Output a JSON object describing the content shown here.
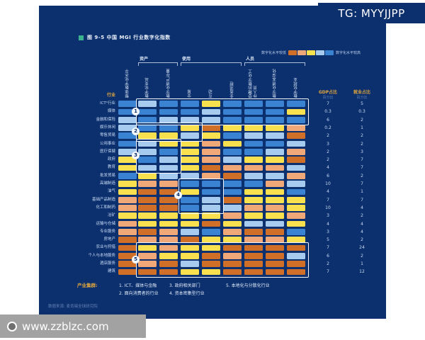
{
  "watermark_tg": "TG: MYYJJPP",
  "watermark_site": "www.zzblzc.com",
  "title": "图 9-5 中国 MGI 行业数字化指数",
  "legend": {
    "low": "数字化水平较低",
    "high": "数字化水平较高"
  },
  "row_header": "行业",
  "gdp_header": "GDP占比",
  "gdp_sub": "百分比",
  "emp_header": "就业占比",
  "emp_sub": "百分比",
  "cluster_label": "产业集群:",
  "cluster_items": [
    "1. ICT、媒体与金融",
    "2. 面向消费者的行业",
    "3. 政府相关部门",
    "4. 资本密集型行业",
    "5. 本地化与分散化行业"
  ],
  "source": "数据来源: 麦肯锡全球研究院",
  "colors": {
    "background": "#0c306e",
    "accent_teal": "#3cb18f",
    "label_orange": "#e6a93c",
    "levels": [
      "#d06f28",
      "#f0a878",
      "#f8e04f",
      "#a6cbee",
      "#3a82d2"
    ]
  },
  "chart_data": {
    "type": "heatmap",
    "title": "图 9-5 中国 MGI 行业数字化指数",
    "legend": {
      "left": "数字化水平较低",
      "right": "数字化水平较高"
    },
    "level_meaning": "1=最低(深橙) 2=较低(浅橙/肉色) 3=中等(黄) 4=较高(浅蓝) 5=最高(蓝)",
    "column_groups": [
      {
        "label": "资产",
        "from": 2,
        "to": 3
      },
      {
        "label": "使用",
        "from": 4,
        "to": 6
      },
      {
        "label": "人员",
        "from": 7,
        "to": 9
      }
    ],
    "columns": [
      "整体数字化水平",
      "数字化支出",
      "数字化资产存量",
      "交易",
      "互动",
      "业务流程",
      "受聘的数字化工作人员",
      "数字化资本深化",
      "数字化就业"
    ],
    "stat_columns": [
      {
        "label": "GDP占比",
        "unit": "百分比"
      },
      {
        "label": "就业占比",
        "unit": "百分比"
      }
    ],
    "rows": [
      {
        "label": "ICT¹行业",
        "levels": [
          5,
          4,
          5,
          5,
          3,
          5,
          5,
          5,
          5
        ],
        "gdp": "7",
        "emp": "5"
      },
      {
        "label": "媒体",
        "levels": [
          5,
          5,
          5,
          5,
          4,
          5,
          5,
          5,
          3
        ],
        "gdp": "0.3",
        "emp": "0.3"
      },
      {
        "label": "金融和保险",
        "levels": [
          4,
          5,
          4,
          4,
          4,
          5,
          5,
          5,
          5
        ],
        "gdp": "6",
        "emp": "2"
      },
      {
        "label": "娱乐休闲",
        "levels": [
          4,
          5,
          5,
          3,
          1,
          3,
          3,
          3,
          2
        ],
        "gdp": "0.2",
        "emp": "1"
      },
      {
        "label": "零售贸易",
        "levels": [
          5,
          3,
          3,
          4,
          3,
          5,
          4,
          4,
          1
        ],
        "gdp": "2",
        "emp": "2"
      },
      {
        "label": "公用事业",
        "levels": [
          5,
          4,
          3,
          3,
          2,
          3,
          5,
          5,
          4
        ],
        "gdp": "3",
        "emp": "2"
      },
      {
        "label": "医疗保健",
        "levels": [
          4,
          4,
          5,
          3,
          2,
          5,
          5,
          4,
          2
        ],
        "gdp": "2",
        "emp": "3"
      },
      {
        "label": "政府",
        "levels": [
          3,
          5,
          4,
          3,
          2,
          4,
          3,
          3,
          1
        ],
        "gdp": "2",
        "emp": "7"
      },
      {
        "label": "教育",
        "levels": [
          3,
          4,
          4,
          3,
          1,
          2,
          2,
          2,
          4
        ],
        "gdp": "4",
        "emp": "7"
      },
      {
        "label": "批发贸易",
        "levels": [
          5,
          3,
          4,
          4,
          2,
          1,
          4,
          4,
          2
        ],
        "gdp": "6",
        "emp": "2"
      },
      {
        "label": "高端制造",
        "levels": [
          3,
          2,
          2,
          5,
          5,
          5,
          5,
          2,
          4
        ],
        "gdp": "10",
        "emp": "7"
      },
      {
        "label": "油气",
        "levels": [
          3,
          1,
          1,
          3,
          5,
          5,
          3,
          3,
          5
        ],
        "gdp": "4",
        "emp": "1"
      },
      {
        "label": "基础产品制造",
        "levels": [
          2,
          1,
          1,
          5,
          4,
          1,
          3,
          3,
          3
        ],
        "gdp": "7",
        "emp": "7"
      },
      {
        "label": "化工和制药",
        "levels": [
          2,
          1,
          1,
          5,
          4,
          4,
          2,
          2,
          3
        ],
        "gdp": "10",
        "emp": "4"
      },
      {
        "label": "冶矿",
        "levels": [
          3,
          3,
          3,
          3,
          3,
          2,
          3,
          3,
          2
        ],
        "gdp": "3",
        "emp": "2"
      },
      {
        "label": "运输与仓储",
        "levels": [
          2,
          3,
          3,
          3,
          1,
          3,
          4,
          4,
          3
        ],
        "gdp": "4",
        "emp": "4"
      },
      {
        "label": "专业服务",
        "levels": [
          2,
          1,
          2,
          4,
          5,
          2,
          1,
          1,
          5
        ],
        "gdp": "3",
        "emp": "4"
      },
      {
        "label": "房地产",
        "levels": [
          1,
          2,
          2,
          1,
          3,
          3,
          2,
          2,
          3
        ],
        "gdp": "5",
        "emp": "2"
      },
      {
        "label": "农业与狩猎",
        "levels": [
          1,
          3,
          2,
          3,
          3,
          1,
          1,
          1,
          1
        ],
        "gdp": "7",
        "emp": "24"
      },
      {
        "label": "个人与本地服务",
        "levels": [
          1,
          2,
          3,
          3,
          1,
          2,
          1,
          1,
          4
        ],
        "gdp": "6",
        "emp": "2"
      },
      {
        "label": "酒店服务",
        "levels": [
          1,
          2,
          1,
          4,
          1,
          1,
          1,
          1,
          1
        ],
        "gdp": "2",
        "emp": "1"
      },
      {
        "label": "建筑",
        "levels": [
          1,
          1,
          1,
          3,
          3,
          1,
          1,
          1,
          1
        ],
        "gdp": "7",
        "emp": "12"
      }
    ],
    "clusters": [
      {
        "id": "1",
        "name": "ICT、媒体与金融",
        "row_from": 1,
        "row_to": 3,
        "col_from": 2,
        "col_to": 9
      },
      {
        "id": "2",
        "name": "面向消费者的行业",
        "row_from": 4,
        "row_to": 5,
        "col_from": 2,
        "col_to": 4
      },
      {
        "id": "3",
        "name": "政府相关部门",
        "row_from": 6,
        "row_to": 9,
        "col_from": 2,
        "col_to": 3
      },
      {
        "id": "4",
        "name": "资本密集型行业",
        "row_from": 11,
        "row_to": 14,
        "col_from": 4,
        "col_to": 5
      },
      {
        "id": "5",
        "name": "本地化与分散化行业",
        "row_from": 19,
        "row_to": 22,
        "col_from": 2,
        "col_to": 9
      }
    ]
  }
}
